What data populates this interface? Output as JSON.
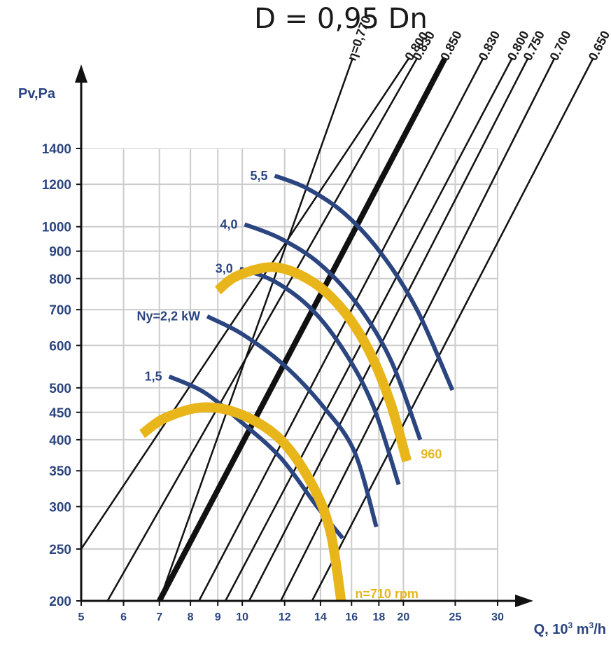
{
  "chart_data": {
    "type": "line",
    "title": "D = 0,95 Dn",
    "xlabel": "Q, 10",
    "xlabel_sup": "3",
    "xlabel_unit": " m",
    "xlabel_unit_sup": "3",
    "xlabel_tail": "/h",
    "ylabel": "Pv,Pa",
    "x_scale": "log",
    "y_scale": "log",
    "grid": true,
    "xlim": [
      5,
      30
    ],
    "ylim": [
      200,
      1400
    ],
    "x_ticks": [
      "5",
      "6",
      "7",
      "8",
      "9",
      "10",
      "12",
      "14",
      "16",
      "18",
      "20",
      "25",
      "30"
    ],
    "y_ticks": [
      "200",
      "250",
      "300",
      "350",
      "400",
      "450",
      "500",
      "600",
      "700",
      "800",
      "900",
      "1000",
      "1200",
      "1400"
    ],
    "colors": {
      "power": "#2b4580",
      "speed": "#e8b51a",
      "efficiency": "#111111",
      "grid": "#cccccc",
      "axis": "#111111"
    },
    "efficiency_lines": [
      {
        "label": "η=0,770",
        "line": [
          [
            7.0,
            200
          ],
          [
            14.0,
            1400
          ]
        ],
        "bold": false
      },
      {
        "label": "0.800",
        "line": [
          [
            5.0,
            250
          ],
          [
            15.8,
            1400
          ]
        ],
        "bold": false
      },
      {
        "label": "0.830",
        "line": [
          [
            5.6,
            200
          ],
          [
            17.0,
            1400
          ]
        ],
        "bold": false
      },
      {
        "label": "0.850",
        "line": [
          [
            7.0,
            200
          ],
          [
            19.5,
            1400
          ]
        ],
        "bold": true
      },
      {
        "label": "0.830",
        "line": [
          [
            8.3,
            200
          ],
          [
            23.0,
            1400
          ]
        ],
        "bold": false
      },
      {
        "label": "0.800",
        "line": [
          [
            9.3,
            200
          ],
          [
            26.0,
            1400
          ]
        ],
        "bold": false
      },
      {
        "label": "0.750",
        "line": [
          [
            10.3,
            200
          ],
          [
            28.0,
            1400
          ]
        ],
        "bold": false
      },
      {
        "label": "0.700",
        "line": [
          [
            11.8,
            200
          ],
          [
            31.5,
            1400
          ]
        ],
        "bold": false
      },
      {
        "label": "0.650",
        "line": [
          [
            13.5,
            200
          ],
          [
            37.0,
            1400
          ]
        ],
        "bold": false
      }
    ],
    "series": [
      {
        "name": "1,5",
        "kind": "power",
        "points": [
          [
            7.3,
            525
          ],
          [
            8.5,
            490
          ],
          [
            10.0,
            430
          ],
          [
            11.8,
            370
          ],
          [
            13.8,
            300
          ],
          [
            15.4,
            262
          ]
        ]
      },
      {
        "name": "Ny=2,2 kW",
        "kind": "power",
        "points": [
          [
            8.6,
            680
          ],
          [
            10.0,
            630
          ],
          [
            12.0,
            550
          ],
          [
            14.2,
            460
          ],
          [
            16.2,
            380
          ],
          [
            17.8,
            275
          ]
        ]
      },
      {
        "name": "3,0",
        "kind": "power",
        "points": [
          [
            9.9,
            835
          ],
          [
            11.5,
            790
          ],
          [
            13.5,
            700
          ],
          [
            15.6,
            580
          ],
          [
            17.6,
            460
          ],
          [
            19.6,
            330
          ]
        ]
      },
      {
        "name": "4,0",
        "kind": "power",
        "points": [
          [
            10.1,
            1010
          ],
          [
            11.8,
            950
          ],
          [
            14.0,
            850
          ],
          [
            16.5,
            710
          ],
          [
            19.0,
            560
          ],
          [
            21.5,
            400
          ]
        ]
      },
      {
        "name": "5,5",
        "kind": "power",
        "points": [
          [
            11.5,
            1245
          ],
          [
            13.2,
            1180
          ],
          [
            15.5,
            1060
          ],
          [
            18.2,
            890
          ],
          [
            21.2,
            700
          ],
          [
            24.7,
            495
          ]
        ]
      },
      {
        "name": "960",
        "kind": "speed",
        "points": [
          [
            9.0,
            760
          ],
          [
            9.8,
            810
          ],
          [
            11.5,
            840
          ],
          [
            13.5,
            790
          ],
          [
            15.4,
            700
          ],
          [
            17.2,
            590
          ],
          [
            18.9,
            470
          ],
          [
            20.3,
            365
          ]
        ]
      },
      {
        "name": "n=710 rpm",
        "kind": "speed",
        "points": [
          [
            6.5,
            410
          ],
          [
            7.2,
            440
          ],
          [
            8.5,
            460
          ],
          [
            10.0,
            445
          ],
          [
            11.8,
            400
          ],
          [
            13.5,
            330
          ],
          [
            14.6,
            270
          ],
          [
            15.3,
            200
          ]
        ]
      }
    ]
  }
}
